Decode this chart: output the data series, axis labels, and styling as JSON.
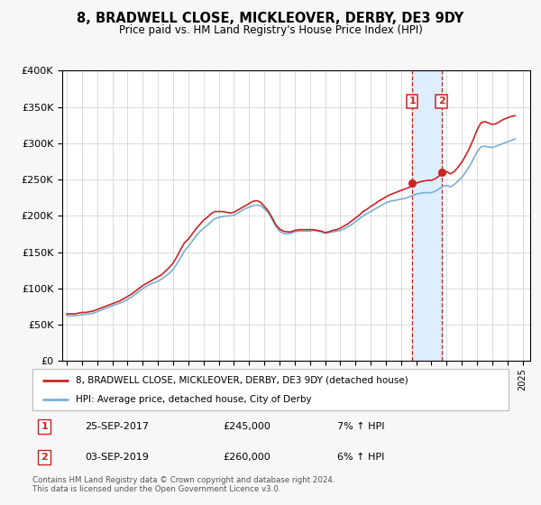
{
  "title": "8, BRADWELL CLOSE, MICKLEOVER, DERBY, DE3 9DY",
  "subtitle": "Price paid vs. HM Land Registry's House Price Index (HPI)",
  "legend_label_red": "8, BRADWELL CLOSE, MICKLEOVER, DERBY, DE3 9DY (detached house)",
  "legend_label_blue": "HPI: Average price, detached house, City of Derby",
  "annotation1_date": "25-SEP-2017",
  "annotation1_price": "£245,000",
  "annotation1_hpi": "7% ↑ HPI",
  "annotation1_year": 2017.73,
  "annotation1_value": 245000,
  "annotation2_date": "03-SEP-2019",
  "annotation2_price": "£260,000",
  "annotation2_hpi": "6% ↑ HPI",
  "annotation2_year": 2019.67,
  "annotation2_value": 260000,
  "footer": "Contains HM Land Registry data © Crown copyright and database right 2024.\nThis data is licensed under the Open Government Licence v3.0.",
  "ylim": [
    0,
    400000
  ],
  "yticks": [
    0,
    50000,
    100000,
    150000,
    200000,
    250000,
    300000,
    350000,
    400000
  ],
  "xlim_start": 1994.7,
  "xlim_end": 2025.5,
  "background_color": "#f7f7f7",
  "plot_bg_color": "#ffffff",
  "red_color": "#cc2222",
  "blue_color": "#7aafd4",
  "shade_color": "#ddeeff",
  "grid_color": "#cccccc",
  "hpi_data_years": [
    1995.0,
    1995.25,
    1995.5,
    1995.75,
    1996.0,
    1996.25,
    1996.5,
    1996.75,
    1997.0,
    1997.25,
    1997.5,
    1997.75,
    1998.0,
    1998.25,
    1998.5,
    1998.75,
    1999.0,
    1999.25,
    1999.5,
    1999.75,
    2000.0,
    2000.25,
    2000.5,
    2000.75,
    2001.0,
    2001.25,
    2001.5,
    2001.75,
    2002.0,
    2002.25,
    2002.5,
    2002.75,
    2003.0,
    2003.25,
    2003.5,
    2003.75,
    2004.0,
    2004.25,
    2004.5,
    2004.75,
    2005.0,
    2005.25,
    2005.5,
    2005.75,
    2006.0,
    2006.25,
    2006.5,
    2006.75,
    2007.0,
    2007.25,
    2007.5,
    2007.75,
    2008.0,
    2008.25,
    2008.5,
    2008.75,
    2009.0,
    2009.25,
    2009.5,
    2009.75,
    2010.0,
    2010.25,
    2010.5,
    2010.75,
    2011.0,
    2011.25,
    2011.5,
    2011.75,
    2012.0,
    2012.25,
    2012.5,
    2012.75,
    2013.0,
    2013.25,
    2013.5,
    2013.75,
    2014.0,
    2014.25,
    2014.5,
    2014.75,
    2015.0,
    2015.25,
    2015.5,
    2015.75,
    2016.0,
    2016.25,
    2016.5,
    2016.75,
    2017.0,
    2017.25,
    2017.5,
    2017.75,
    2018.0,
    2018.25,
    2018.5,
    2018.75,
    2019.0,
    2019.25,
    2019.5,
    2019.75,
    2020.0,
    2020.25,
    2020.5,
    2020.75,
    2021.0,
    2021.25,
    2021.5,
    2021.75,
    2022.0,
    2022.25,
    2022.5,
    2022.75,
    2023.0,
    2023.25,
    2023.5,
    2023.75,
    2024.0,
    2024.25,
    2024.5
  ],
  "hpi_data_values": [
    63000,
    62000,
    62500,
    63000,
    64000,
    64500,
    65000,
    66000,
    68000,
    70000,
    72000,
    74000,
    76000,
    78000,
    80000,
    82000,
    85000,
    88000,
    92000,
    96000,
    100000,
    103000,
    106000,
    108000,
    110000,
    113000,
    117000,
    121000,
    126000,
    134000,
    143000,
    152000,
    158000,
    165000,
    172000,
    178000,
    183000,
    187000,
    192000,
    196000,
    198000,
    199000,
    200000,
    200000,
    201000,
    204000,
    207000,
    210000,
    212000,
    214000,
    215000,
    214000,
    210000,
    205000,
    196000,
    186000,
    179000,
    176000,
    175000,
    176000,
    178000,
    179000,
    179000,
    179000,
    179000,
    180000,
    179000,
    178000,
    176000,
    177000,
    178000,
    179000,
    180000,
    182000,
    185000,
    188000,
    192000,
    196000,
    200000,
    203000,
    206000,
    209000,
    212000,
    215000,
    218000,
    220000,
    221000,
    222000,
    223000,
    224000,
    226000,
    228000,
    230000,
    231000,
    232000,
    232000,
    232000,
    234000,
    237000,
    241000,
    242000,
    240000,
    243000,
    248000,
    253000,
    260000,
    268000,
    278000,
    288000,
    295000,
    296000,
    295000,
    294000,
    296000,
    298000,
    300000,
    302000,
    304000,
    306000
  ],
  "price_data_years": [
    1995.0,
    1995.25,
    1995.5,
    1995.75,
    1996.0,
    1996.25,
    1996.5,
    1996.75,
    1997.0,
    1997.25,
    1997.5,
    1997.75,
    1998.0,
    1998.25,
    1998.5,
    1998.75,
    1999.0,
    1999.25,
    1999.5,
    1999.75,
    2000.0,
    2000.25,
    2000.5,
    2000.75,
    2001.0,
    2001.25,
    2001.5,
    2001.75,
    2002.0,
    2002.25,
    2002.5,
    2002.75,
    2003.0,
    2003.25,
    2003.5,
    2003.75,
    2004.0,
    2004.25,
    2004.5,
    2004.75,
    2005.0,
    2005.25,
    2005.5,
    2005.75,
    2006.0,
    2006.25,
    2006.5,
    2006.75,
    2007.0,
    2007.25,
    2007.5,
    2007.75,
    2008.0,
    2008.25,
    2008.5,
    2008.75,
    2009.0,
    2009.25,
    2009.5,
    2009.75,
    2010.0,
    2010.25,
    2010.5,
    2010.75,
    2011.0,
    2011.25,
    2011.5,
    2011.75,
    2012.0,
    2012.25,
    2012.5,
    2012.75,
    2013.0,
    2013.25,
    2013.5,
    2013.75,
    2014.0,
    2014.25,
    2014.5,
    2014.75,
    2015.0,
    2015.25,
    2015.5,
    2015.75,
    2016.0,
    2016.25,
    2016.5,
    2016.75,
    2017.0,
    2017.25,
    2017.5,
    2017.75,
    2018.0,
    2018.25,
    2018.5,
    2018.75,
    2019.0,
    2019.25,
    2019.5,
    2019.75,
    2020.0,
    2020.25,
    2020.5,
    2020.75,
    2021.0,
    2021.25,
    2021.5,
    2021.75,
    2022.0,
    2022.25,
    2022.5,
    2022.75,
    2023.0,
    2023.25,
    2023.5,
    2023.75,
    2024.0,
    2024.25,
    2024.5
  ],
  "price_data_values": [
    65000,
    65000,
    65000,
    66000,
    67000,
    67000,
    68000,
    69000,
    71000,
    73000,
    75000,
    77000,
    79000,
    81000,
    83000,
    86000,
    89000,
    92000,
    96000,
    100000,
    104000,
    107000,
    110000,
    113000,
    116000,
    119000,
    124000,
    129000,
    135000,
    144000,
    154000,
    163000,
    168000,
    175000,
    182000,
    188000,
    194000,
    198000,
    203000,
    206000,
    206000,
    206000,
    205000,
    204000,
    205000,
    208000,
    211000,
    214000,
    217000,
    220000,
    221000,
    219000,
    213000,
    207000,
    198000,
    188000,
    182000,
    179000,
    178000,
    178000,
    180000,
    181000,
    181000,
    181000,
    181000,
    181000,
    180000,
    179000,
    177000,
    178000,
    180000,
    181000,
    183000,
    186000,
    189000,
    193000,
    197000,
    201000,
    206000,
    209000,
    213000,
    216000,
    220000,
    223000,
    226000,
    229000,
    231000,
    233000,
    235000,
    237000,
    239000,
    242000,
    245000,
    247000,
    248000,
    249000,
    249000,
    251000,
    255000,
    260000,
    261000,
    258000,
    261000,
    267000,
    274000,
    283000,
    293000,
    305000,
    318000,
    328000,
    330000,
    328000,
    326000,
    327000,
    330000,
    333000,
    335000,
    337000,
    338000
  ]
}
